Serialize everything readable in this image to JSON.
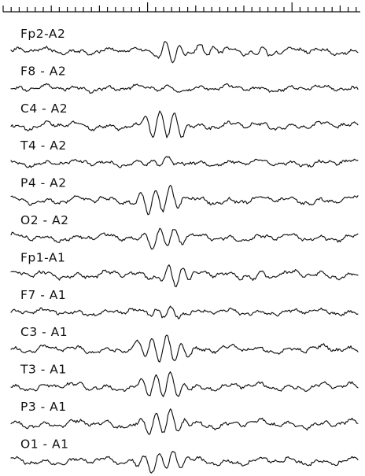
{
  "channels": [
    {
      "label": "Fp2-A2"
    },
    {
      "label": "F8 - A2"
    },
    {
      "label": "C4 - A2"
    },
    {
      "label": "T4 - A2"
    },
    {
      "label": "P4 - A2"
    },
    {
      "label": "O2 - A2"
    },
    {
      "label": "Fp1-A1"
    },
    {
      "label": "F7 - A1"
    },
    {
      "label": "C3 - A1"
    },
    {
      "label": "T3 - A1"
    },
    {
      "label": "P3 - A1"
    },
    {
      "label": "O1 - A1"
    }
  ],
  "colors": {
    "ink": "#111111",
    "background": "#ffffff"
  }
}
